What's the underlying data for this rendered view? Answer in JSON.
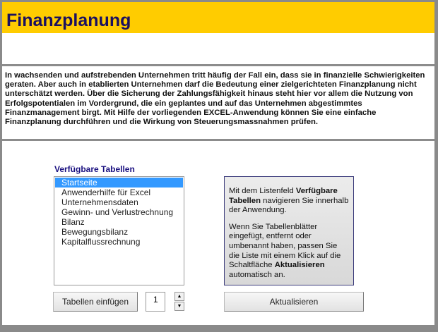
{
  "header": {
    "title": "Finanzplanung"
  },
  "intro": "In wachsenden und aufstrebenden Unternehmen tritt häufig der Fall ein, dass sie in finanzielle Schwierigkeiten geraten. Aber auch in etablierten Unternehmen darf die Bedeutung einer zielgerichteten Finanzplanung nicht unterschätzt werden. Über die Sicherung der Zahlungsfähigkeit hinaus steht hier vor allem die Nutzung von Erfolgspotentialen im Vordergrund, die ein geplantes und auf das Unternehmen abgestimmtes Finanzmanagement birgt. Mit Hilfe der vorliegenden EXCEL-Anwendung können Sie eine einfache Finanzplanung durchführen und die Wirkung von Steuerungsmassnahmen prüfen.",
  "list": {
    "label": "Verfügbare Tabellen",
    "selected": "Startseite",
    "items": [
      "Startseite",
      "Anwenderhilfe für Excel",
      "Unternehmensdaten",
      "Gewinn- und Verlustrechnung",
      "Bilanz",
      "Bewegungsbilanz",
      "Kapitalflussrechnung"
    ]
  },
  "info": {
    "p1_a": "Mit dem Listenfeld ",
    "p1_b": "Verfügbare Tabellen",
    "p1_c": " navigieren Sie innerhalb der Anwendung.",
    "p2_a": "Wenn Sie Tabellenblätter eingefügt, entfernt oder umbenannt haben, passen Sie die Liste mit einem Klick auf die Schaltfläche ",
    "p2_b": "Aktualisieren",
    "p2_c": " automatisch an."
  },
  "controls": {
    "insert_label": "Tabellen einfügen",
    "count": "1",
    "up": "▲",
    "down": "▼",
    "refresh_label": "Aktualisieren"
  },
  "colors": {
    "header": "#ffcc00",
    "title": "#1a1060",
    "selection": "#3399ff"
  }
}
